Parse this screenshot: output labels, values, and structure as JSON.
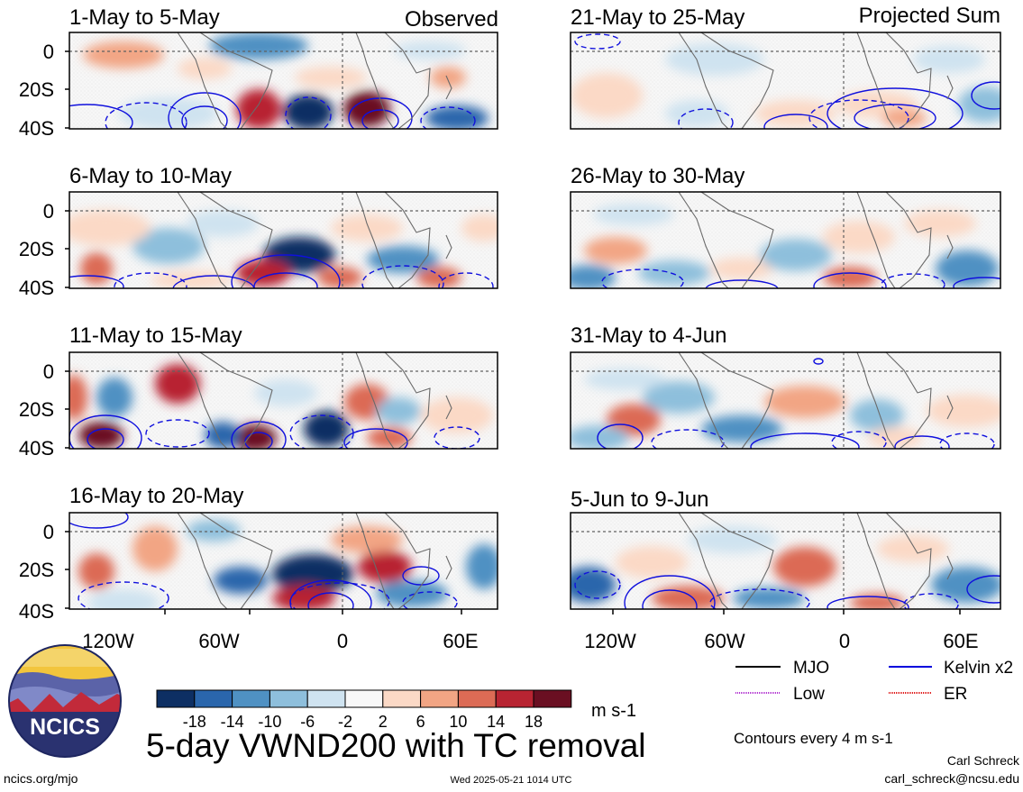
{
  "title": "5-day VWND200 with TC removal",
  "units": "m s-1",
  "contour_note": "Contours every 4 m s-1",
  "author": "Carl Schreck",
  "email": "carl_schreck@ncsu.edu",
  "website": "ncics.org/mjo",
  "timestamp": "Wed 2025-05-21 1014 UTC",
  "logo_text": "NCICS",
  "column_labels": {
    "left": "Observed",
    "right": "Projected Sum"
  },
  "lat_labels": [
    "0",
    "20S",
    "40S"
  ],
  "lon_labels": [
    "120W",
    "60W",
    "0",
    "60E"
  ],
  "panels": [
    {
      "label": "1-May to 5-May"
    },
    {
      "label": "6-May to 10-May"
    },
    {
      "label": "11-May to 15-May"
    },
    {
      "label": "16-May to 20-May"
    },
    {
      "label": "21-May to 25-May"
    },
    {
      "label": "26-May to 30-May"
    },
    {
      "label": "31-May to 4-Jun"
    },
    {
      "label": "5-Jun to 9-Jun"
    }
  ],
  "legend": [
    {
      "label": "MJO",
      "color": "#000000"
    },
    {
      "label": "Kelvin x2",
      "color": "#0000dd"
    },
    {
      "label": "Low",
      "color": "#b030d0"
    },
    {
      "label": "ER",
      "color": "#dd1111"
    }
  ],
  "colorbar": {
    "colors": [
      "#0d2f63",
      "#2a66ac",
      "#4f91c3",
      "#8ebfdc",
      "#cfe3f0",
      "#f8f8f8",
      "#fbd9c6",
      "#f2a584",
      "#dc6b55",
      "#b82432",
      "#6a0f22"
    ],
    "tick_labels": [
      "-18",
      "-14",
      "-10",
      "-6",
      "-2",
      "2",
      "6",
      "10",
      "14",
      "18"
    ]
  }
}
